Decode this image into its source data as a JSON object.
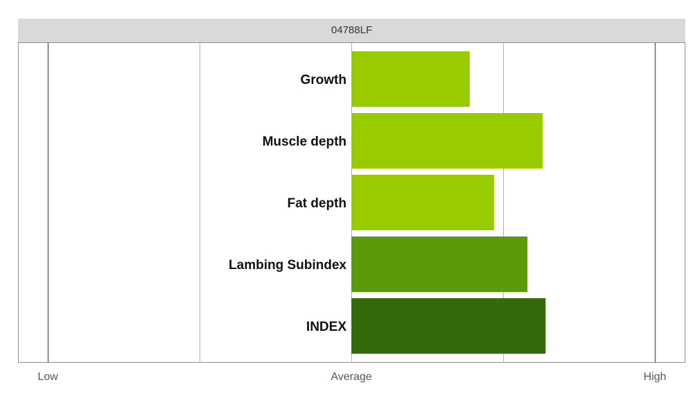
{
  "chart_data": {
    "type": "bar",
    "orientation": "horizontal",
    "title": "04788LF",
    "categories": [
      "Growth",
      "Muscle depth",
      "Fat depth",
      "Lambing Subindex",
      "INDEX"
    ],
    "values": [
      0.39,
      0.63,
      0.47,
      0.58,
      0.64
    ],
    "xlim": [
      -1,
      1
    ],
    "x_tick_labels": [
      {
        "value": -1,
        "label": "Low"
      },
      {
        "value": 0,
        "label": "Average"
      },
      {
        "value": 1,
        "label": "High"
      }
    ],
    "gridlines": [
      -1,
      -0.5,
      0,
      0.5,
      1
    ],
    "bar_colors": [
      "#99cc00",
      "#99cc00",
      "#99cc00",
      "#5b9a0b",
      "#336b0b"
    ],
    "grid": true,
    "legend": "none"
  }
}
